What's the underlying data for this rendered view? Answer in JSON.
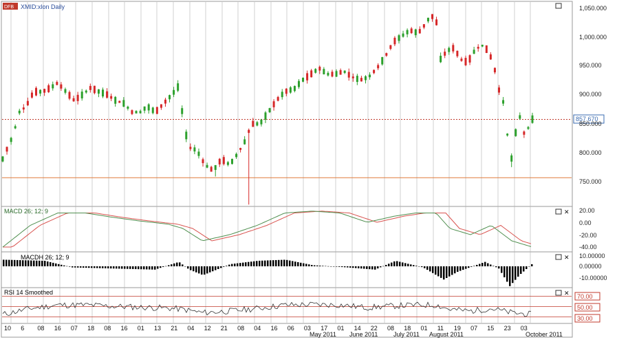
{
  "window": {
    "symbol_title": "XMID:xlon Daily",
    "badge_text": "DFB",
    "close_icon": "✕",
    "restore_icon": "▭"
  },
  "colors": {
    "up": "#2ca02c",
    "down": "#d62728",
    "grid": "#b0b0b0",
    "dotted_price": "#c0392b",
    "support_line": "#e07a3a",
    "macd_line": "#4f8f4f",
    "signal_line": "#d9534f",
    "rsi_line": "#333333",
    "rsi_level": "#c0392b",
    "price_tag_border": "#3a6bb0"
  },
  "panes": {
    "price": {
      "y_ticks": [
        "1,050.000",
        "1,000.000",
        "950.000",
        "900.000",
        "850.000",
        "800.000",
        "750.000"
      ],
      "current_price_label": "857.670"
    },
    "macd": {
      "title": "MACD 26; 12; 9",
      "y_ticks": [
        "20.00",
        "0.00",
        "-20.00",
        "-40.00"
      ]
    },
    "histogram": {
      "title": "MACDH 26; 12; 9",
      "y_ticks": [
        "10.00000",
        "0.00000",
        "-10.00000"
      ]
    },
    "rsi": {
      "title": "RSI 14 Smoothed",
      "levels": [
        "70.00",
        "50.00",
        "30.00"
      ]
    }
  },
  "x_axis": {
    "day_labels": [
      "10",
      "6",
      "08",
      "16",
      "07",
      "18",
      "08",
      "16",
      "01",
      "13",
      "21",
      "04",
      "12",
      "21",
      "08",
      "04",
      "16",
      "06",
      "03",
      "17",
      "01",
      "14",
      "22",
      "08",
      "18",
      "01",
      "11",
      "19",
      "07",
      "15",
      "23",
      "03"
    ],
    "month_labels": [
      "May 2011",
      "June 2011",
      "July 2011",
      "August 2011",
      "October 2011"
    ]
  },
  "chart_data": {
    "type": "candlestick",
    "title": "XMID:xlon Daily",
    "last_price": 857.67,
    "support_level": 758,
    "ylim": [
      700,
      1060
    ],
    "series": [
      {
        "name": "MACD 26; 12; 9",
        "yrange": [
          -50,
          25
        ]
      },
      {
        "name": "MACDH 26; 12; 9",
        "yrange": [
          -15,
          12
        ]
      },
      {
        "name": "RSI 14 Smoothed",
        "levels": [
          70,
          50,
          30
        ]
      }
    ]
  }
}
